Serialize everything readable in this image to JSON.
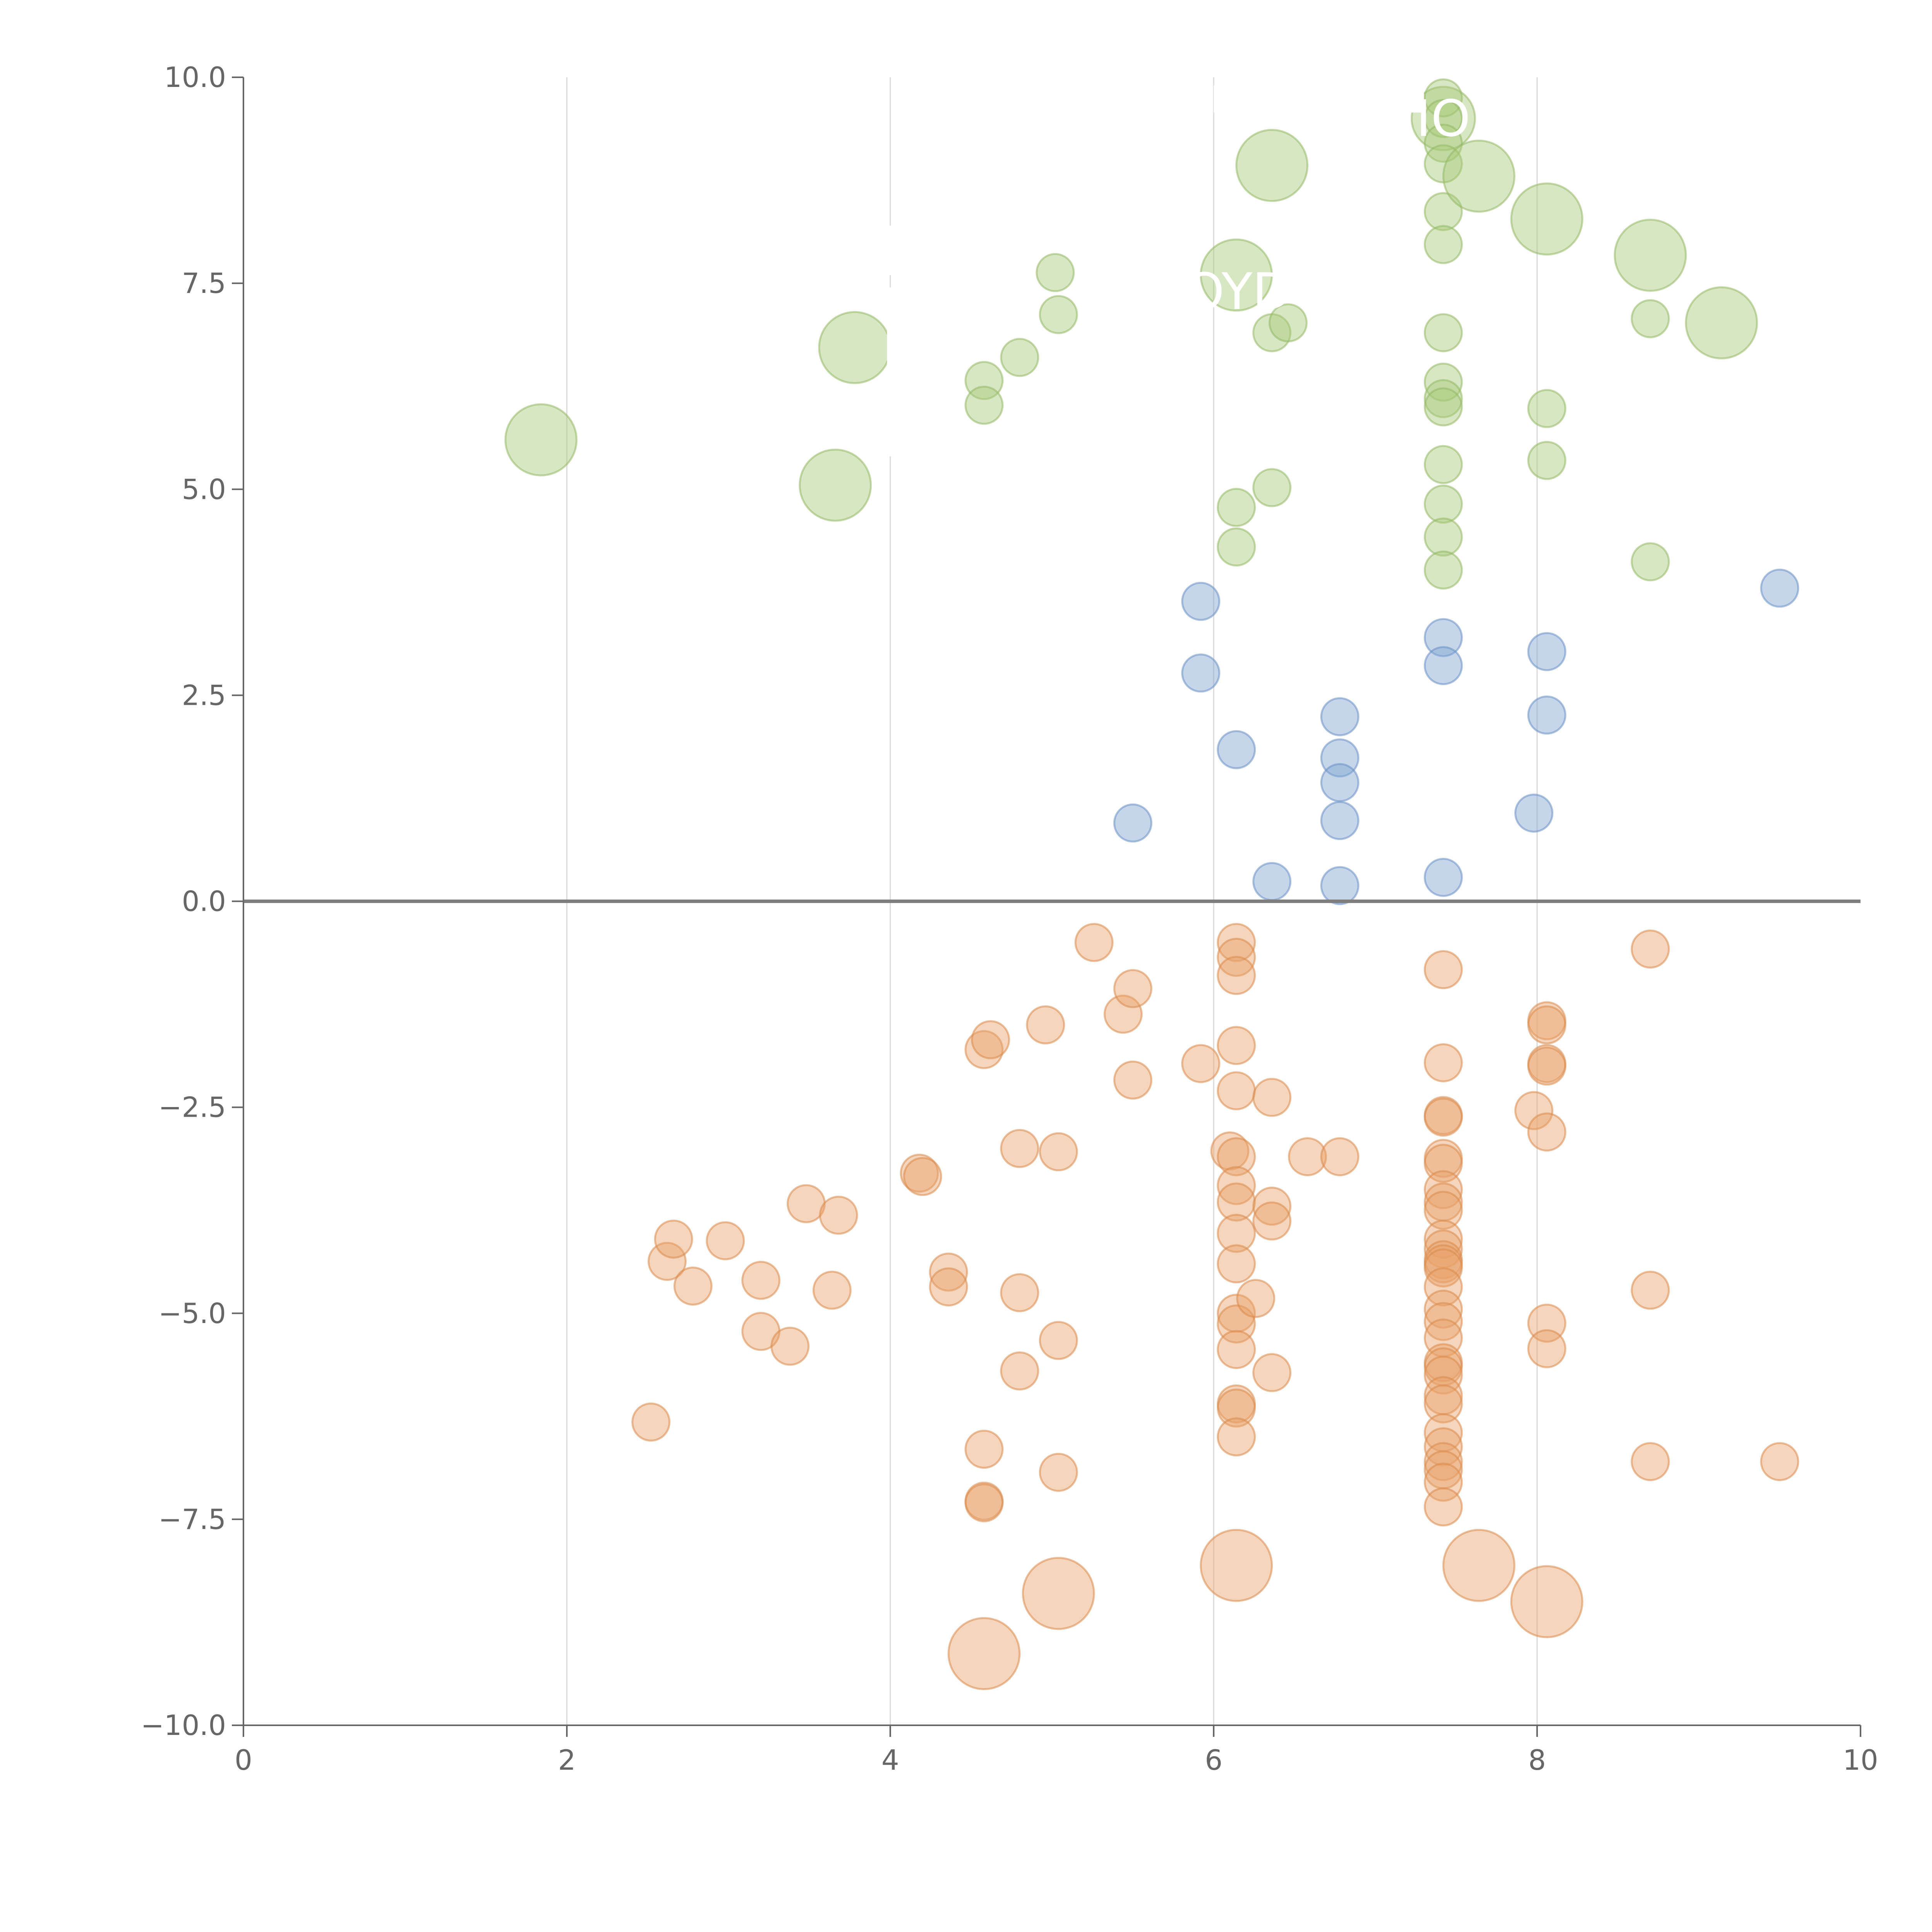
{
  "chart_data": {
    "type": "scatter",
    "title": "",
    "xlabel": "",
    "ylabel": "",
    "xlim": [
      0,
      10
    ],
    "ylim": [
      -10,
      10
    ],
    "x_ticks": [
      0,
      2,
      4,
      6,
      8,
      10
    ],
    "x_tick_labels": [
      "0",
      "2",
      "4",
      "6",
      "8",
      "10"
    ],
    "y_ticks": [
      10,
      7.5,
      5,
      2.5,
      0,
      -2.5,
      -5,
      -7.5,
      -10
    ],
    "y_tick_labels": [
      "10.0",
      "7.5",
      "5.0",
      "2.5",
      "0.0",
      "−2.5",
      "−5.0",
      "−7.5",
      "−10.0"
    ],
    "vertical_grid_x": [
      2,
      4,
      6,
      8
    ],
    "zero_line_y": 0,
    "overlay_labels": [
      {
        "text": "IO",
        "x": 7.42,
        "y": 9.5
      },
      {
        "text": "OYD",
        "x": 6.15,
        "y": 7.4
      }
    ],
    "series": [
      {
        "name": "green",
        "color": "#a9c97a",
        "stroke": "#93b865",
        "points": [
          {
            "x": 1.84,
            "y": 5.6,
            "size": "large"
          },
          {
            "x": 3.66,
            "y": 5.05,
            "size": "large"
          },
          {
            "x": 3.78,
            "y": 6.72,
            "size": "large"
          },
          {
            "x": 4.58,
            "y": 6.32,
            "size": "small"
          },
          {
            "x": 4.58,
            "y": 6.02,
            "size": "small"
          },
          {
            "x": 4.8,
            "y": 6.6,
            "size": "small"
          },
          {
            "x": 5.02,
            "y": 7.63,
            "size": "small"
          },
          {
            "x": 5.04,
            "y": 7.12,
            "size": "small"
          },
          {
            "x": 6.14,
            "y": 7.6,
            "size": "large"
          },
          {
            "x": 6.14,
            "y": 4.78,
            "size": "small"
          },
          {
            "x": 6.14,
            "y": 4.3,
            "size": "small"
          },
          {
            "x": 6.36,
            "y": 8.93,
            "size": "large"
          },
          {
            "x": 6.36,
            "y": 6.9,
            "size": "small"
          },
          {
            "x": 6.36,
            "y": 5.02,
            "size": "small"
          },
          {
            "x": 6.46,
            "y": 7.02,
            "size": "small"
          },
          {
            "x": 7.42,
            "y": 9.5,
            "size": "medium"
          },
          {
            "x": 7.42,
            "y": 9.75,
            "size": "small"
          },
          {
            "x": 7.42,
            "y": 9.5,
            "size": "small"
          },
          {
            "x": 7.42,
            "y": 9.2,
            "size": "small"
          },
          {
            "x": 7.42,
            "y": 8.95,
            "size": "small"
          },
          {
            "x": 7.42,
            "y": 8.37,
            "size": "small"
          },
          {
            "x": 7.42,
            "y": 7.97,
            "size": "small"
          },
          {
            "x": 7.42,
            "y": 6.9,
            "size": "small"
          },
          {
            "x": 7.42,
            "y": 6.3,
            "size": "small"
          },
          {
            "x": 7.42,
            "y": 6.1,
            "size": "small"
          },
          {
            "x": 7.42,
            "y": 6.0,
            "size": "small"
          },
          {
            "x": 7.42,
            "y": 5.3,
            "size": "small"
          },
          {
            "x": 7.42,
            "y": 4.82,
            "size": "small"
          },
          {
            "x": 7.42,
            "y": 4.42,
            "size": "small"
          },
          {
            "x": 7.42,
            "y": 4.02,
            "size": "small"
          },
          {
            "x": 7.64,
            "y": 8.8,
            "size": "large"
          },
          {
            "x": 8.06,
            "y": 8.28,
            "size": "large"
          },
          {
            "x": 8.06,
            "y": 5.98,
            "size": "small"
          },
          {
            "x": 8.06,
            "y": 5.35,
            "size": "small"
          },
          {
            "x": 8.7,
            "y": 7.84,
            "size": "large"
          },
          {
            "x": 8.7,
            "y": 7.07,
            "size": "small"
          },
          {
            "x": 8.7,
            "y": 4.12,
            "size": "small"
          },
          {
            "x": 9.14,
            "y": 7.02,
            "size": "large"
          }
        ]
      },
      {
        "name": "blue",
        "color": "#7fa3d1",
        "stroke": "#6a8fc2",
        "points": [
          {
            "x": 5.5,
            "y": 0.95,
            "size": "small"
          },
          {
            "x": 5.92,
            "y": 3.64,
            "size": "small"
          },
          {
            "x": 5.92,
            "y": 2.77,
            "size": "small"
          },
          {
            "x": 6.14,
            "y": 1.84,
            "size": "small"
          },
          {
            "x": 6.36,
            "y": 0.24,
            "size": "small"
          },
          {
            "x": 6.78,
            "y": 2.24,
            "size": "small"
          },
          {
            "x": 6.78,
            "y": 1.74,
            "size": "small"
          },
          {
            "x": 6.78,
            "y": 1.44,
            "size": "small"
          },
          {
            "x": 6.78,
            "y": 0.98,
            "size": "small"
          },
          {
            "x": 6.78,
            "y": 0.19,
            "size": "small"
          },
          {
            "x": 7.42,
            "y": 3.2,
            "size": "small"
          },
          {
            "x": 7.42,
            "y": 2.86,
            "size": "small"
          },
          {
            "x": 7.42,
            "y": 0.29,
            "size": "small"
          },
          {
            "x": 7.98,
            "y": 1.07,
            "size": "small"
          },
          {
            "x": 8.06,
            "y": 3.03,
            "size": "small"
          },
          {
            "x": 8.06,
            "y": 2.26,
            "size": "small"
          },
          {
            "x": 9.5,
            "y": 3.8,
            "size": "small"
          }
        ]
      },
      {
        "name": "orange",
        "color": "#e8a26b",
        "stroke": "#d98a4c",
        "points": [
          {
            "x": 2.52,
            "y": -6.32,
            "size": "small"
          },
          {
            "x": 2.62,
            "y": -4.37,
            "size": "small"
          },
          {
            "x": 2.66,
            "y": -4.1,
            "size": "small"
          },
          {
            "x": 2.78,
            "y": -4.67,
            "size": "small"
          },
          {
            "x": 2.98,
            "y": -4.12,
            "size": "small"
          },
          {
            "x": 3.2,
            "y": -4.6,
            "size": "small"
          },
          {
            "x": 3.2,
            "y": -5.22,
            "size": "small"
          },
          {
            "x": 3.38,
            "y": -5.4,
            "size": "small"
          },
          {
            "x": 3.48,
            "y": -3.67,
            "size": "small"
          },
          {
            "x": 3.64,
            "y": -4.72,
            "size": "small"
          },
          {
            "x": 3.68,
            "y": -3.81,
            "size": "small"
          },
          {
            "x": 4.18,
            "y": -3.3,
            "size": "small"
          },
          {
            "x": 4.2,
            "y": -3.34,
            "size": "small"
          },
          {
            "x": 4.36,
            "y": -4.5,
            "size": "small"
          },
          {
            "x": 4.36,
            "y": -4.68,
            "size": "small"
          },
          {
            "x": 4.58,
            "y": -1.8,
            "size": "small"
          },
          {
            "x": 4.62,
            "y": -1.68,
            "size": "small"
          },
          {
            "x": 4.58,
            "y": -6.65,
            "size": "small"
          },
          {
            "x": 4.58,
            "y": -7.28,
            "size": "small"
          },
          {
            "x": 4.58,
            "y": -7.3,
            "size": "small"
          },
          {
            "x": 4.58,
            "y": -9.13,
            "size": "large"
          },
          {
            "x": 4.8,
            "y": -3.0,
            "size": "small"
          },
          {
            "x": 4.8,
            "y": -4.75,
            "size": "small"
          },
          {
            "x": 4.8,
            "y": -5.7,
            "size": "small"
          },
          {
            "x": 4.96,
            "y": -1.5,
            "size": "small"
          },
          {
            "x": 5.04,
            "y": -3.04,
            "size": "small"
          },
          {
            "x": 5.04,
            "y": -5.33,
            "size": "small"
          },
          {
            "x": 5.04,
            "y": -6.93,
            "size": "small"
          },
          {
            "x": 5.04,
            "y": -8.4,
            "size": "large"
          },
          {
            "x": 5.26,
            "y": -0.5,
            "size": "small"
          },
          {
            "x": 5.44,
            "y": -1.37,
            "size": "small"
          },
          {
            "x": 5.5,
            "y": -1.06,
            "size": "small"
          },
          {
            "x": 5.5,
            "y": -2.17,
            "size": "small"
          },
          {
            "x": 5.92,
            "y": -1.97,
            "size": "small"
          },
          {
            "x": 6.1,
            "y": -3.03,
            "size": "small"
          },
          {
            "x": 6.14,
            "y": -0.5,
            "size": "small"
          },
          {
            "x": 6.14,
            "y": -0.68,
            "size": "small"
          },
          {
            "x": 6.14,
            "y": -0.9,
            "size": "small"
          },
          {
            "x": 6.14,
            "y": -1.75,
            "size": "small"
          },
          {
            "x": 6.14,
            "y": -2.3,
            "size": "small"
          },
          {
            "x": 6.14,
            "y": -3.1,
            "size": "small"
          },
          {
            "x": 6.14,
            "y": -3.45,
            "size": "small"
          },
          {
            "x": 6.14,
            "y": -3.65,
            "size": "small"
          },
          {
            "x": 6.14,
            "y": -4.03,
            "size": "small"
          },
          {
            "x": 6.14,
            "y": -4.4,
            "size": "small"
          },
          {
            "x": 6.14,
            "y": -5.0,
            "size": "small"
          },
          {
            "x": 6.14,
            "y": -5.13,
            "size": "small"
          },
          {
            "x": 6.14,
            "y": -5.44,
            "size": "small"
          },
          {
            "x": 6.14,
            "y": -6.1,
            "size": "small"
          },
          {
            "x": 6.14,
            "y": -6.15,
            "size": "small"
          },
          {
            "x": 6.14,
            "y": -6.5,
            "size": "small"
          },
          {
            "x": 6.14,
            "y": -8.06,
            "size": "large"
          },
          {
            "x": 6.26,
            "y": -4.82,
            "size": "small"
          },
          {
            "x": 6.36,
            "y": -2.38,
            "size": "small"
          },
          {
            "x": 6.36,
            "y": -3.7,
            "size": "small"
          },
          {
            "x": 6.36,
            "y": -3.88,
            "size": "small"
          },
          {
            "x": 6.36,
            "y": -5.72,
            "size": "small"
          },
          {
            "x": 6.58,
            "y": -3.1,
            "size": "small"
          },
          {
            "x": 6.78,
            "y": -3.1,
            "size": "small"
          },
          {
            "x": 7.42,
            "y": -0.83,
            "size": "small"
          },
          {
            "x": 7.42,
            "y": -1.96,
            "size": "small"
          },
          {
            "x": 7.42,
            "y": -2.6,
            "size": "small"
          },
          {
            "x": 7.42,
            "y": -2.62,
            "size": "small"
          },
          {
            "x": 7.42,
            "y": -3.12,
            "size": "small"
          },
          {
            "x": 7.42,
            "y": -3.18,
            "size": "small"
          },
          {
            "x": 7.42,
            "y": -3.5,
            "size": "small"
          },
          {
            "x": 7.42,
            "y": -3.65,
            "size": "small"
          },
          {
            "x": 7.42,
            "y": -3.75,
            "size": "small"
          },
          {
            "x": 7.42,
            "y": -4.1,
            "size": "small"
          },
          {
            "x": 7.42,
            "y": -4.22,
            "size": "small"
          },
          {
            "x": 7.42,
            "y": -4.35,
            "size": "small"
          },
          {
            "x": 7.42,
            "y": -4.4,
            "size": "small"
          },
          {
            "x": 7.42,
            "y": -4.45,
            "size": "small"
          },
          {
            "x": 7.42,
            "y": -4.68,
            "size": "small"
          },
          {
            "x": 7.42,
            "y": -4.95,
            "size": "small"
          },
          {
            "x": 7.42,
            "y": -5.1,
            "size": "small"
          },
          {
            "x": 7.42,
            "y": -5.3,
            "size": "small"
          },
          {
            "x": 7.42,
            "y": -5.6,
            "size": "small"
          },
          {
            "x": 7.42,
            "y": -5.65,
            "size": "small"
          },
          {
            "x": 7.42,
            "y": -5.75,
            "size": "small"
          },
          {
            "x": 7.42,
            "y": -6.0,
            "size": "small"
          },
          {
            "x": 7.42,
            "y": -6.1,
            "size": "small"
          },
          {
            "x": 7.42,
            "y": -6.45,
            "size": "small"
          },
          {
            "x": 7.42,
            "y": -6.62,
            "size": "small"
          },
          {
            "x": 7.42,
            "y": -6.8,
            "size": "small"
          },
          {
            "x": 7.42,
            "y": -6.9,
            "size": "small"
          },
          {
            "x": 7.42,
            "y": -7.05,
            "size": "small"
          },
          {
            "x": 7.42,
            "y": -7.35,
            "size": "small"
          },
          {
            "x": 7.64,
            "y": -8.06,
            "size": "large"
          },
          {
            "x": 7.98,
            "y": -2.54,
            "size": "small"
          },
          {
            "x": 8.06,
            "y": -1.45,
            "size": "small"
          },
          {
            "x": 8.06,
            "y": -1.5,
            "size": "small"
          },
          {
            "x": 8.06,
            "y": -1.97,
            "size": "small"
          },
          {
            "x": 8.06,
            "y": -2.0,
            "size": "small"
          },
          {
            "x": 8.06,
            "y": -2.8,
            "size": "small"
          },
          {
            "x": 8.06,
            "y": -5.12,
            "size": "small"
          },
          {
            "x": 8.06,
            "y": -5.43,
            "size": "small"
          },
          {
            "x": 8.06,
            "y": -8.5,
            "size": "large"
          },
          {
            "x": 8.7,
            "y": -0.58,
            "size": "small"
          },
          {
            "x": 8.7,
            "y": -4.72,
            "size": "small"
          },
          {
            "x": 8.7,
            "y": -6.8,
            "size": "small"
          },
          {
            "x": 9.5,
            "y": -6.8,
            "size": "small"
          }
        ]
      }
    ]
  }
}
